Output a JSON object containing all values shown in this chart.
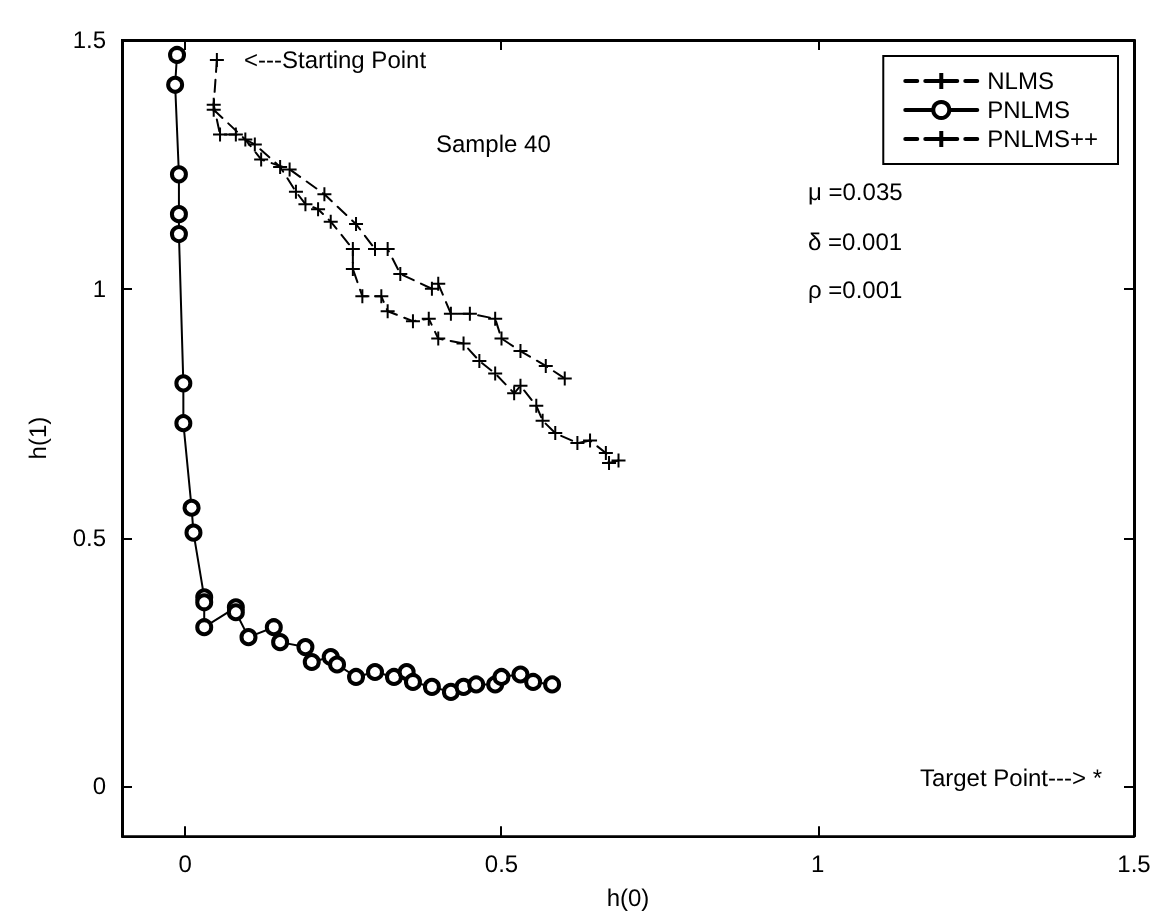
{
  "chart_data": {
    "type": "line",
    "xlabel": "h(0)",
    "ylabel": "h(1)",
    "xlim": [
      -0.1,
      1.5
    ],
    "ylim": [
      -0.1,
      1.5
    ],
    "xticks": [
      0,
      0.5,
      1,
      1.5
    ],
    "yticks": [
      0,
      0.5,
      1,
      1.5
    ],
    "grid": false,
    "legend": "top right",
    "annotations": [
      "<---Starting Point",
      "Sample 40",
      "μ =0.035",
      "δ =0.001",
      "ρ =0.001",
      "Target Point---> *"
    ],
    "series": [
      {
        "name": "NLMS",
        "color": "#000000",
        "marker": "cross",
        "line_style": "dashed",
        "x": [
          0.045,
          0.095,
          0.12,
          0.165,
          0.22,
          0.27,
          0.3,
          0.32,
          0.34,
          0.39,
          0.4,
          0.42,
          0.45,
          0.49,
          0.5,
          0.53,
          0.57,
          0.6
        ],
        "values": [
          1.36,
          1.3,
          1.26,
          1.24,
          1.19,
          1.13,
          1.08,
          1.08,
          1.03,
          1,
          1.01,
          0.95,
          0.95,
          0.94,
          0.9,
          0.875,
          0.845,
          0.82
        ]
      },
      {
        "name": "PNLMS",
        "color": "#000000",
        "marker": "circle",
        "line_style": "solid",
        "x": [
          -0.013,
          -0.016,
          -0.01,
          -0.01,
          -0.01,
          -0.003,
          -0.003,
          0.01,
          0.013,
          0.03,
          0.03,
          0.03,
          0.08,
          0.08,
          0.1,
          0.14,
          0.15,
          0.19,
          0.2,
          0.23,
          0.24,
          0.27,
          0.3,
          0.33,
          0.35,
          0.36,
          0.39,
          0.42,
          0.44,
          0.46,
          0.49,
          0.5,
          0.53,
          0.55,
          0.58
        ],
        "values": [
          1.47,
          1.41,
          1.23,
          1.15,
          1.11,
          0.81,
          0.73,
          0.56,
          0.51,
          0.38,
          0.37,
          0.32,
          0.36,
          0.35,
          0.3,
          0.32,
          0.29,
          0.28,
          0.25,
          0.26,
          0.245,
          0.22,
          0.23,
          0.22,
          0.23,
          0.21,
          0.2,
          0.19,
          0.2,
          0.205,
          0.205,
          0.22,
          0.225,
          0.21,
          0.205
        ]
      },
      {
        "name": "PNLMS++",
        "color": "#000000",
        "marker": "cross",
        "line_style": "dashed",
        "x": [
          0.05,
          0.045,
          0.055,
          0.08,
          0.11,
          0.15,
          0.175,
          0.19,
          0.21,
          0.23,
          0.265,
          0.265,
          0.28,
          0.31,
          0.32,
          0.36,
          0.385,
          0.4,
          0.44,
          0.465,
          0.49,
          0.52,
          0.53,
          0.555,
          0.565,
          0.585,
          0.62,
          0.64,
          0.665,
          0.67,
          0.685
        ],
        "values": [
          1.46,
          1.37,
          1.31,
          1.31,
          1.29,
          1.245,
          1.195,
          1.17,
          1.16,
          1.135,
          1.08,
          1.04,
          0.985,
          0.985,
          0.955,
          0.935,
          0.94,
          0.9,
          0.89,
          0.855,
          0.83,
          0.79,
          0.805,
          0.765,
          0.735,
          0.71,
          0.69,
          0.695,
          0.67,
          0.65,
          0.655
        ]
      }
    ]
  }
}
